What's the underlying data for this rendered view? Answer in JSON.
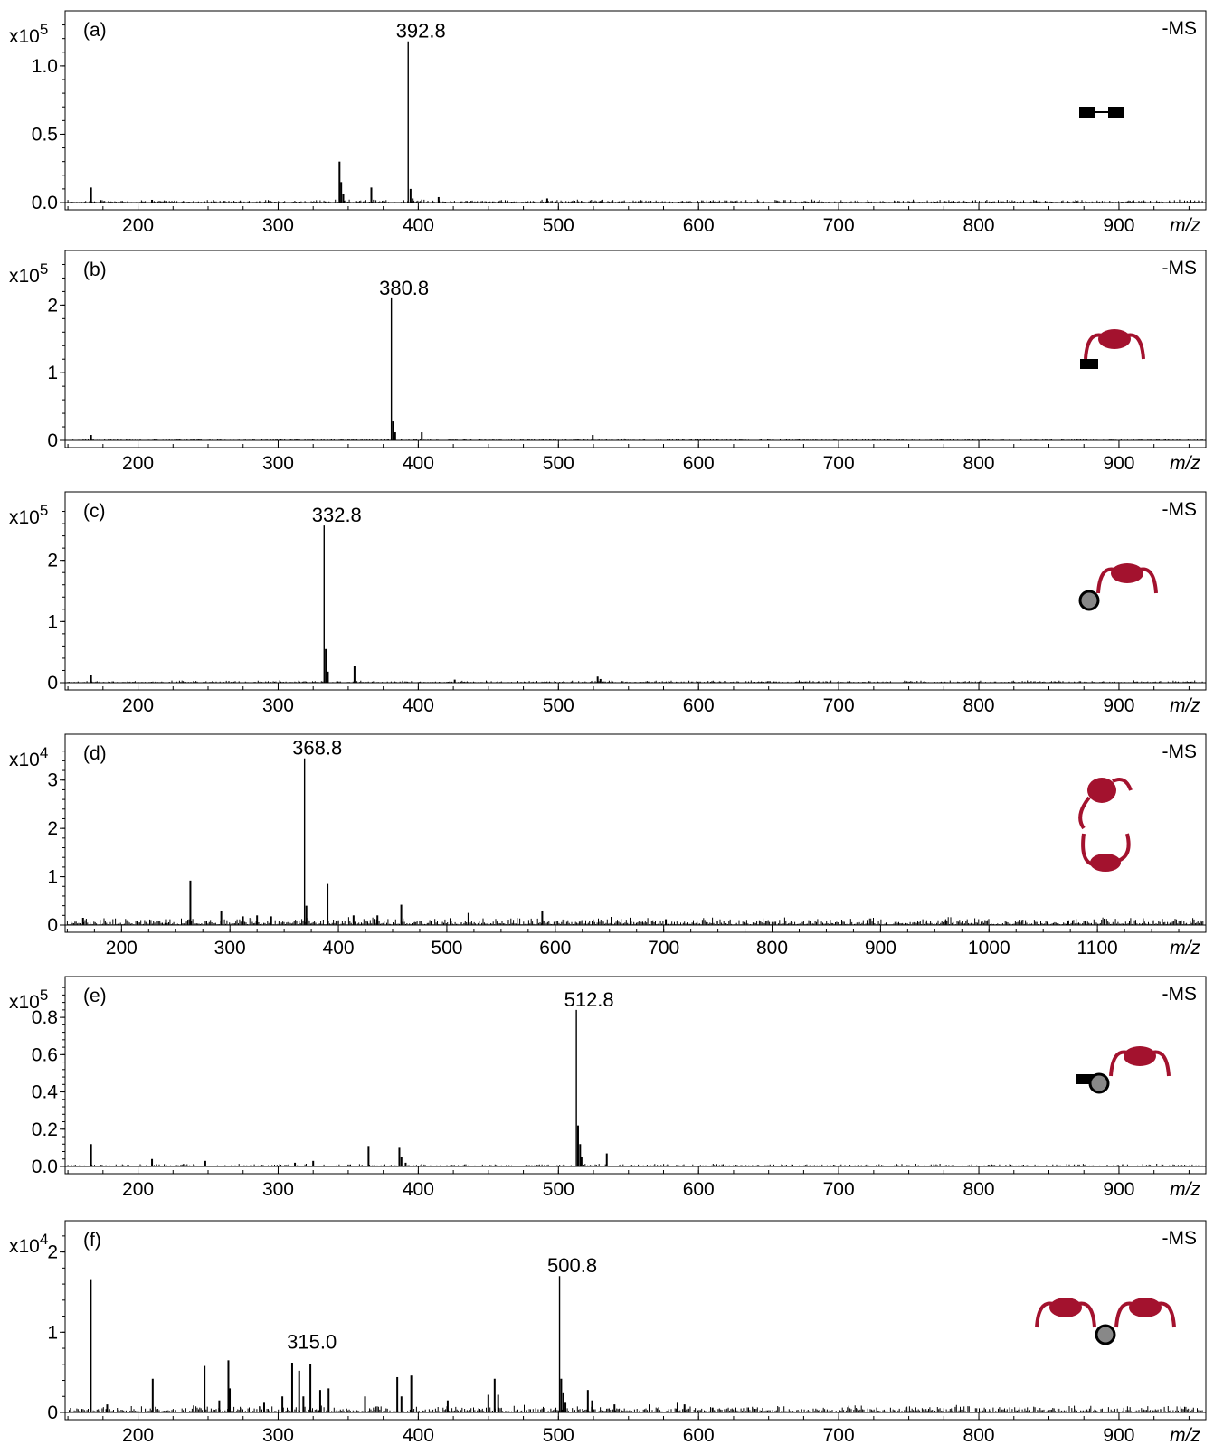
{
  "colors": {
    "line": "#000000",
    "motif": "#a3122e",
    "node": "#888888",
    "background": "#ffffff"
  },
  "chart_data": [
    {
      "type": "bar",
      "panel_label": "(a)",
      "mode_label": "-MS",
      "exponent_base": "x10",
      "exponent": "5",
      "x_ticks": [
        200,
        300,
        400,
        500,
        600,
        700,
        800,
        900
      ],
      "xlim": [
        148,
        962
      ],
      "xlabel": "m/z",
      "y_ticks": [
        0.0,
        0.5,
        1.0
      ],
      "y_tick_labels": [
        "0.0",
        "0.5",
        "1.0"
      ],
      "ylim": [
        0,
        1.35
      ],
      "peaks": [
        [
          166.5,
          0.11
        ],
        [
          210,
          0.02
        ],
        [
          343.8,
          0.3
        ],
        [
          345,
          0.15
        ],
        [
          346.5,
          0.06
        ],
        [
          366.5,
          0.11
        ],
        [
          392.8,
          1.18
        ],
        [
          394.5,
          0.1
        ],
        [
          396,
          0.03
        ],
        [
          414.5,
          0.04
        ],
        [
          492,
          0.03
        ],
        [
          530,
          0.01
        ]
      ],
      "noise_level": 0.012,
      "annotations": [
        {
          "x": 392.8,
          "y": 1.18,
          "text": "392.8"
        }
      ],
      "icon": "two-squares-linked-icon"
    },
    {
      "type": "bar",
      "panel_label": "(b)",
      "mode_label": "-MS",
      "exponent_base": "x10",
      "exponent": "5",
      "x_ticks": [
        200,
        300,
        400,
        500,
        600,
        700,
        800,
        900
      ],
      "xlim": [
        148,
        962
      ],
      "xlabel": "m/z",
      "y_ticks": [
        0,
        1,
        2
      ],
      "y_tick_labels": [
        "0",
        "1",
        "2"
      ],
      "ylim": [
        0,
        2.7
      ],
      "peaks": [
        [
          166.5,
          0.08
        ],
        [
          380.8,
          2.1
        ],
        [
          382,
          0.28
        ],
        [
          383.5,
          0.12
        ],
        [
          402.5,
          0.12
        ],
        [
          524.5,
          0.08
        ]
      ],
      "noise_level": 0.015,
      "annotations": [
        {
          "x": 380.8,
          "y": 2.1,
          "text": "380.8"
        }
      ],
      "icon": "square-with-arc-icon"
    },
    {
      "type": "bar",
      "panel_label": "(c)",
      "mode_label": "-MS",
      "exponent_base": "x10",
      "exponent": "5",
      "x_ticks": [
        200,
        300,
        400,
        500,
        600,
        700,
        800,
        900
      ],
      "xlim": [
        148,
        962
      ],
      "xlabel": "m/z",
      "y_ticks": [
        0,
        1,
        2
      ],
      "y_tick_labels": [
        "0",
        "1",
        "2"
      ],
      "ylim": [
        0,
        3.0
      ],
      "peaks": [
        [
          166.5,
          0.12
        ],
        [
          332.8,
          2.57
        ],
        [
          334,
          0.55
        ],
        [
          335.5,
          0.18
        ],
        [
          354.5,
          0.28
        ],
        [
          426,
          0.05
        ],
        [
          528,
          0.1
        ],
        [
          530,
          0.06
        ]
      ],
      "noise_level": 0.02,
      "annotations": [
        {
          "x": 332.8,
          "y": 2.57,
          "text": "332.8"
        }
      ],
      "icon": "circle-with-arc-icon"
    },
    {
      "type": "bar",
      "panel_label": "(d)",
      "mode_label": "-MS",
      "exponent_base": "x10",
      "exponent": "4",
      "x_ticks": [
        200,
        300,
        400,
        500,
        600,
        700,
        800,
        900,
        1000,
        1100
      ],
      "xlim": [
        148,
        1200
      ],
      "xlabel": "m/z",
      "y_ticks": [
        0,
        1,
        2,
        3
      ],
      "y_tick_labels": [
        "0",
        "1",
        "2",
        "3"
      ],
      "ylim": [
        0,
        3.8
      ],
      "peaks": [
        [
          164.5,
          0.15
        ],
        [
          241,
          0.12
        ],
        [
          263.5,
          0.92
        ],
        [
          292,
          0.3
        ],
        [
          312,
          0.18
        ],
        [
          325,
          0.2
        ],
        [
          338,
          0.18
        ],
        [
          368.8,
          3.45
        ],
        [
          370.5,
          0.4
        ],
        [
          390,
          0.85
        ],
        [
          414,
          0.2
        ],
        [
          436,
          0.2
        ],
        [
          458,
          0.42
        ],
        [
          520,
          0.25
        ],
        [
          588,
          0.3
        ],
        [
          702,
          0.12
        ],
        [
          960,
          0.1
        ],
        [
          1073,
          0.08
        ]
      ],
      "noise_level": 0.09,
      "annotations": [
        {
          "x": 368.8,
          "y": 3.45,
          "text": "368.8"
        }
      ],
      "icon": "two-arcs-icon"
    },
    {
      "type": "bar",
      "panel_label": "(e)",
      "mode_label": "-MS",
      "exponent_base": "x10",
      "exponent": "5",
      "x_ticks": [
        200,
        300,
        400,
        500,
        600,
        700,
        800,
        900
      ],
      "xlim": [
        148,
        962
      ],
      "xlabel": "m/z",
      "y_ticks": [
        0.0,
        0.2,
        0.4,
        0.6,
        0.8
      ],
      "y_tick_labels": [
        "0.0",
        "0.2",
        "0.4",
        "0.6",
        "0.8"
      ],
      "ylim": [
        0,
        0.98
      ],
      "peaks": [
        [
          166.5,
          0.12
        ],
        [
          210,
          0.04
        ],
        [
          248,
          0.03
        ],
        [
          312,
          0.02
        ],
        [
          325,
          0.03
        ],
        [
          364.5,
          0.11
        ],
        [
          386.5,
          0.1
        ],
        [
          388,
          0.05
        ],
        [
          391,
          0.02
        ],
        [
          512.8,
          0.84
        ],
        [
          514,
          0.22
        ],
        [
          515.5,
          0.12
        ],
        [
          516.5,
          0.05
        ],
        [
          534.5,
          0.07
        ]
      ],
      "noise_level": 0.008,
      "annotations": [
        {
          "x": 512.8,
          "y": 0.84,
          "text": "512.8"
        }
      ],
      "icon": "square-circle-arc-icon"
    },
    {
      "type": "bar",
      "panel_label": "(f)",
      "mode_label": "-MS",
      "exponent_base": "x10",
      "exponent": "4",
      "x_ticks": [
        200,
        300,
        400,
        500,
        600,
        700,
        800,
        900
      ],
      "xlim": [
        148,
        962
      ],
      "xlabel": "m/z",
      "y_ticks": [
        0,
        1,
        2
      ],
      "y_tick_labels": [
        "0",
        "1",
        "2"
      ],
      "ylim": [
        0,
        2.3
      ],
      "peaks": [
        [
          166.5,
          1.65
        ],
        [
          178,
          0.1
        ],
        [
          210.5,
          0.42
        ],
        [
          247.5,
          0.58
        ],
        [
          258,
          0.15
        ],
        [
          264.5,
          0.65
        ],
        [
          265.5,
          0.3
        ],
        [
          290,
          0.12
        ],
        [
          303,
          0.2
        ],
        [
          310,
          0.62
        ],
        [
          315.0,
          0.52
        ],
        [
          318,
          0.2
        ],
        [
          323,
          0.6
        ],
        [
          330,
          0.28
        ],
        [
          336,
          0.3
        ],
        [
          362,
          0.2
        ],
        [
          385,
          0.44
        ],
        [
          388,
          0.2
        ],
        [
          395,
          0.46
        ],
        [
          421,
          0.15
        ],
        [
          450,
          0.22
        ],
        [
          454.5,
          0.42
        ],
        [
          457,
          0.22
        ],
        [
          500.8,
          1.7
        ],
        [
          502,
          0.42
        ],
        [
          503.5,
          0.25
        ],
        [
          505,
          0.12
        ],
        [
          521,
          0.28
        ],
        [
          524,
          0.15
        ],
        [
          540,
          0.1
        ],
        [
          565,
          0.1
        ],
        [
          585,
          0.12
        ],
        [
          590,
          0.1
        ],
        [
          610,
          0.06
        ]
      ],
      "noise_level": 0.05,
      "annotations": [
        {
          "x": 315.0,
          "y": 0.75,
          "text": "315.0"
        },
        {
          "x": 500.8,
          "y": 1.7,
          "text": "500.8"
        }
      ],
      "icon": "two-arcs-bridged-icon"
    }
  ]
}
